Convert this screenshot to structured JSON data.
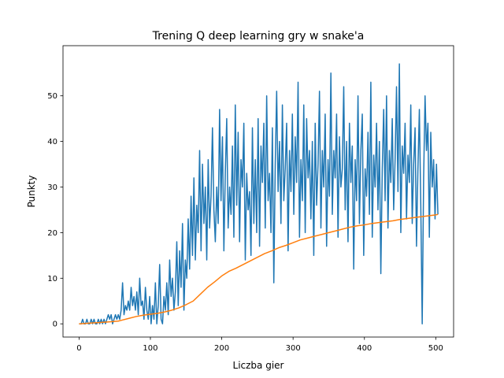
{
  "chart_data": {
    "type": "line",
    "title": "Trening Q deep learning gry w snake'a",
    "xlabel": "Liczba gier",
    "ylabel": "Punkty",
    "xlim": [
      -22.5,
      525
    ],
    "ylim": [
      -2.9,
      61
    ],
    "xticks": [
      0,
      100,
      200,
      300,
      400,
      500
    ],
    "yticks": [
      0,
      10,
      20,
      30,
      40,
      50
    ],
    "grid": false,
    "series": [
      {
        "color": "#1f77b4",
        "points": [
          [
            0,
            0
          ],
          [
            3,
            0
          ],
          [
            5,
            1
          ],
          [
            7,
            0
          ],
          [
            9,
            0
          ],
          [
            11,
            1
          ],
          [
            13,
            0
          ],
          [
            15,
            0
          ],
          [
            17,
            1
          ],
          [
            19,
            0
          ],
          [
            21,
            1
          ],
          [
            23,
            0
          ],
          [
            25,
            0
          ],
          [
            27,
            1
          ],
          [
            29,
            0
          ],
          [
            31,
            1
          ],
          [
            33,
            0
          ],
          [
            35,
            1
          ],
          [
            37,
            0
          ],
          [
            39,
            1
          ],
          [
            41,
            2
          ],
          [
            43,
            1
          ],
          [
            45,
            2
          ],
          [
            47,
            0
          ],
          [
            49,
            1
          ],
          [
            51,
            2
          ],
          [
            53,
            1
          ],
          [
            55,
            2
          ],
          [
            57,
            1
          ],
          [
            59,
            3
          ],
          [
            61,
            9
          ],
          [
            63,
            2
          ],
          [
            65,
            4
          ],
          [
            67,
            3
          ],
          [
            69,
            5
          ],
          [
            71,
            3
          ],
          [
            73,
            8
          ],
          [
            75,
            4
          ],
          [
            77,
            6
          ],
          [
            79,
            3
          ],
          [
            81,
            7
          ],
          [
            83,
            2
          ],
          [
            85,
            10
          ],
          [
            87,
            4
          ],
          [
            89,
            5
          ],
          [
            91,
            1
          ],
          [
            93,
            8
          ],
          [
            95,
            3
          ],
          [
            97,
            1
          ],
          [
            99,
            6
          ],
          [
            101,
            0
          ],
          [
            103,
            4
          ],
          [
            105,
            1
          ],
          [
            107,
            9
          ],
          [
            109,
            0
          ],
          [
            111,
            4
          ],
          [
            113,
            13
          ],
          [
            115,
            1
          ],
          [
            117,
            0
          ],
          [
            119,
            6
          ],
          [
            121,
            3
          ],
          [
            123,
            9
          ],
          [
            125,
            2
          ],
          [
            127,
            14
          ],
          [
            129,
            6
          ],
          [
            131,
            10
          ],
          [
            133,
            3
          ],
          [
            135,
            7
          ],
          [
            137,
            18
          ],
          [
            139,
            4
          ],
          [
            141,
            16
          ],
          [
            143,
            8
          ],
          [
            145,
            22
          ],
          [
            147,
            3
          ],
          [
            149,
            14
          ],
          [
            151,
            10
          ],
          [
            153,
            23
          ],
          [
            155,
            12
          ],
          [
            157,
            28
          ],
          [
            159,
            15
          ],
          [
            161,
            32
          ],
          [
            163,
            14
          ],
          [
            165,
            26
          ],
          [
            167,
            20
          ],
          [
            169,
            38
          ],
          [
            171,
            16
          ],
          [
            173,
            35
          ],
          [
            175,
            22
          ],
          [
            177,
            30
          ],
          [
            179,
            14
          ],
          [
            181,
            36
          ],
          [
            183,
            21
          ],
          [
            185,
            28
          ],
          [
            187,
            43
          ],
          [
            189,
            25
          ],
          [
            191,
            18
          ],
          [
            193,
            30
          ],
          [
            195,
            22
          ],
          [
            197,
            47
          ],
          [
            199,
            27
          ],
          [
            201,
            41
          ],
          [
            203,
            16
          ],
          [
            205,
            33
          ],
          [
            207,
            45
          ],
          [
            209,
            21
          ],
          [
            211,
            30
          ],
          [
            213,
            24
          ],
          [
            215,
            39
          ],
          [
            217,
            19
          ],
          [
            219,
            48
          ],
          [
            221,
            26
          ],
          [
            223,
            42
          ],
          [
            225,
            18
          ],
          [
            227,
            36
          ],
          [
            229,
            30
          ],
          [
            231,
            44
          ],
          [
            233,
            14
          ],
          [
            235,
            33
          ],
          [
            237,
            25
          ],
          [
            239,
            29
          ],
          [
            241,
            15
          ],
          [
            243,
            43
          ],
          [
            245,
            22
          ],
          [
            247,
            36
          ],
          [
            249,
            20
          ],
          [
            251,
            45
          ],
          [
            253,
            17
          ],
          [
            255,
            39
          ],
          [
            257,
            31
          ],
          [
            259,
            44
          ],
          [
            261,
            21
          ],
          [
            263,
            50
          ],
          [
            265,
            27
          ],
          [
            267,
            33
          ],
          [
            269,
            20
          ],
          [
            271,
            43
          ],
          [
            273,
            9
          ],
          [
            275,
            35
          ],
          [
            277,
            51
          ],
          [
            279,
            29
          ],
          [
            281,
            40
          ],
          [
            283,
            22
          ],
          [
            285,
            48
          ],
          [
            287,
            27
          ],
          [
            289,
            34
          ],
          [
            291,
            44
          ],
          [
            293,
            16
          ],
          [
            295,
            38
          ],
          [
            297,
            29
          ],
          [
            299,
            46
          ],
          [
            301,
            24
          ],
          [
            303,
            41
          ],
          [
            305,
            31
          ],
          [
            307,
            53
          ],
          [
            309,
            19
          ],
          [
            311,
            36
          ],
          [
            313,
            27
          ],
          [
            315,
            48
          ],
          [
            317,
            20
          ],
          [
            319,
            45
          ],
          [
            321,
            32
          ],
          [
            323,
            38
          ],
          [
            325,
            23
          ],
          [
            327,
            40
          ],
          [
            329,
            15
          ],
          [
            331,
            44
          ],
          [
            333,
            26
          ],
          [
            335,
            35
          ],
          [
            337,
            51
          ],
          [
            339,
            21
          ],
          [
            341,
            38
          ],
          [
            343,
            30
          ],
          [
            345,
            46
          ],
          [
            347,
            17
          ],
          [
            349,
            36
          ],
          [
            351,
            28
          ],
          [
            353,
            55
          ],
          [
            355,
            24
          ],
          [
            357,
            38
          ],
          [
            359,
            32
          ],
          [
            361,
            46
          ],
          [
            363,
            19
          ],
          [
            365,
            41
          ],
          [
            367,
            30
          ],
          [
            369,
            34
          ],
          [
            371,
            52
          ],
          [
            373,
            25
          ],
          [
            375,
            40
          ],
          [
            377,
            18
          ],
          [
            379,
            44
          ],
          [
            381,
            31
          ],
          [
            383,
            39
          ],
          [
            385,
            12
          ],
          [
            387,
            36
          ],
          [
            389,
            27
          ],
          [
            391,
            50
          ],
          [
            393,
            22
          ],
          [
            395,
            38
          ],
          [
            397,
            46
          ],
          [
            399,
            15
          ],
          [
            401,
            34
          ],
          [
            403,
            28
          ],
          [
            405,
            42
          ],
          [
            407,
            24
          ],
          [
            409,
            53
          ],
          [
            411,
            19
          ],
          [
            413,
            37
          ],
          [
            415,
            30
          ],
          [
            417,
            44
          ],
          [
            419,
            25
          ],
          [
            421,
            40
          ],
          [
            423,
            11
          ],
          [
            425,
            34
          ],
          [
            427,
            47
          ],
          [
            429,
            27
          ],
          [
            431,
            50
          ],
          [
            433,
            21
          ],
          [
            435,
            38
          ],
          [
            437,
            31
          ],
          [
            439,
            45
          ],
          [
            441,
            25
          ],
          [
            443,
            36
          ],
          [
            445,
            52
          ],
          [
            447,
            29
          ],
          [
            449,
            57
          ],
          [
            451,
            20
          ],
          [
            453,
            39
          ],
          [
            455,
            33
          ],
          [
            457,
            44
          ],
          [
            459,
            23
          ],
          [
            461,
            37
          ],
          [
            463,
            31
          ],
          [
            465,
            48
          ],
          [
            467,
            22
          ],
          [
            469,
            35
          ],
          [
            471,
            43
          ],
          [
            473,
            17
          ],
          [
            475,
            34
          ],
          [
            477,
            47
          ],
          [
            479,
            26
          ],
          [
            481,
            0
          ],
          [
            483,
            32
          ],
          [
            485,
            50
          ],
          [
            487,
            38
          ],
          [
            489,
            44
          ],
          [
            491,
            19
          ],
          [
            493,
            42
          ],
          [
            495,
            30
          ],
          [
            497,
            36
          ],
          [
            499,
            23
          ],
          [
            501,
            35
          ],
          [
            503,
            24
          ]
        ]
      },
      {
        "color": "#ff7f0e",
        "points": [
          [
            0,
            0
          ],
          [
            20,
            0.2
          ],
          [
            40,
            0.4
          ],
          [
            55,
            0.6
          ],
          [
            60,
            0.8
          ],
          [
            70,
            1.2
          ],
          [
            80,
            1.6
          ],
          [
            90,
            1.9
          ],
          [
            100,
            2.1
          ],
          [
            110,
            2.3
          ],
          [
            120,
            2.6
          ],
          [
            130,
            3.0
          ],
          [
            140,
            3.5
          ],
          [
            150,
            4.2
          ],
          [
            160,
            5.0
          ],
          [
            170,
            6.5
          ],
          [
            180,
            8.0
          ],
          [
            190,
            9.2
          ],
          [
            200,
            10.5
          ],
          [
            210,
            11.5
          ],
          [
            220,
            12.2
          ],
          [
            230,
            13.0
          ],
          [
            240,
            13.8
          ],
          [
            250,
            14.6
          ],
          [
            260,
            15.4
          ],
          [
            270,
            16.0
          ],
          [
            280,
            16.7
          ],
          [
            290,
            17.2
          ],
          [
            300,
            17.8
          ],
          [
            310,
            18.4
          ],
          [
            320,
            18.8
          ],
          [
            330,
            19.2
          ],
          [
            340,
            19.6
          ],
          [
            350,
            20.0
          ],
          [
            360,
            20.4
          ],
          [
            370,
            20.8
          ],
          [
            380,
            21.2
          ],
          [
            390,
            21.5
          ],
          [
            400,
            21.7
          ],
          [
            410,
            22.0
          ],
          [
            420,
            22.2
          ],
          [
            430,
            22.4
          ],
          [
            440,
            22.6
          ],
          [
            450,
            22.9
          ],
          [
            460,
            23.1
          ],
          [
            470,
            23.3
          ],
          [
            480,
            23.5
          ],
          [
            490,
            23.7
          ],
          [
            500,
            23.9
          ],
          [
            503,
            24.0
          ]
        ]
      }
    ]
  }
}
